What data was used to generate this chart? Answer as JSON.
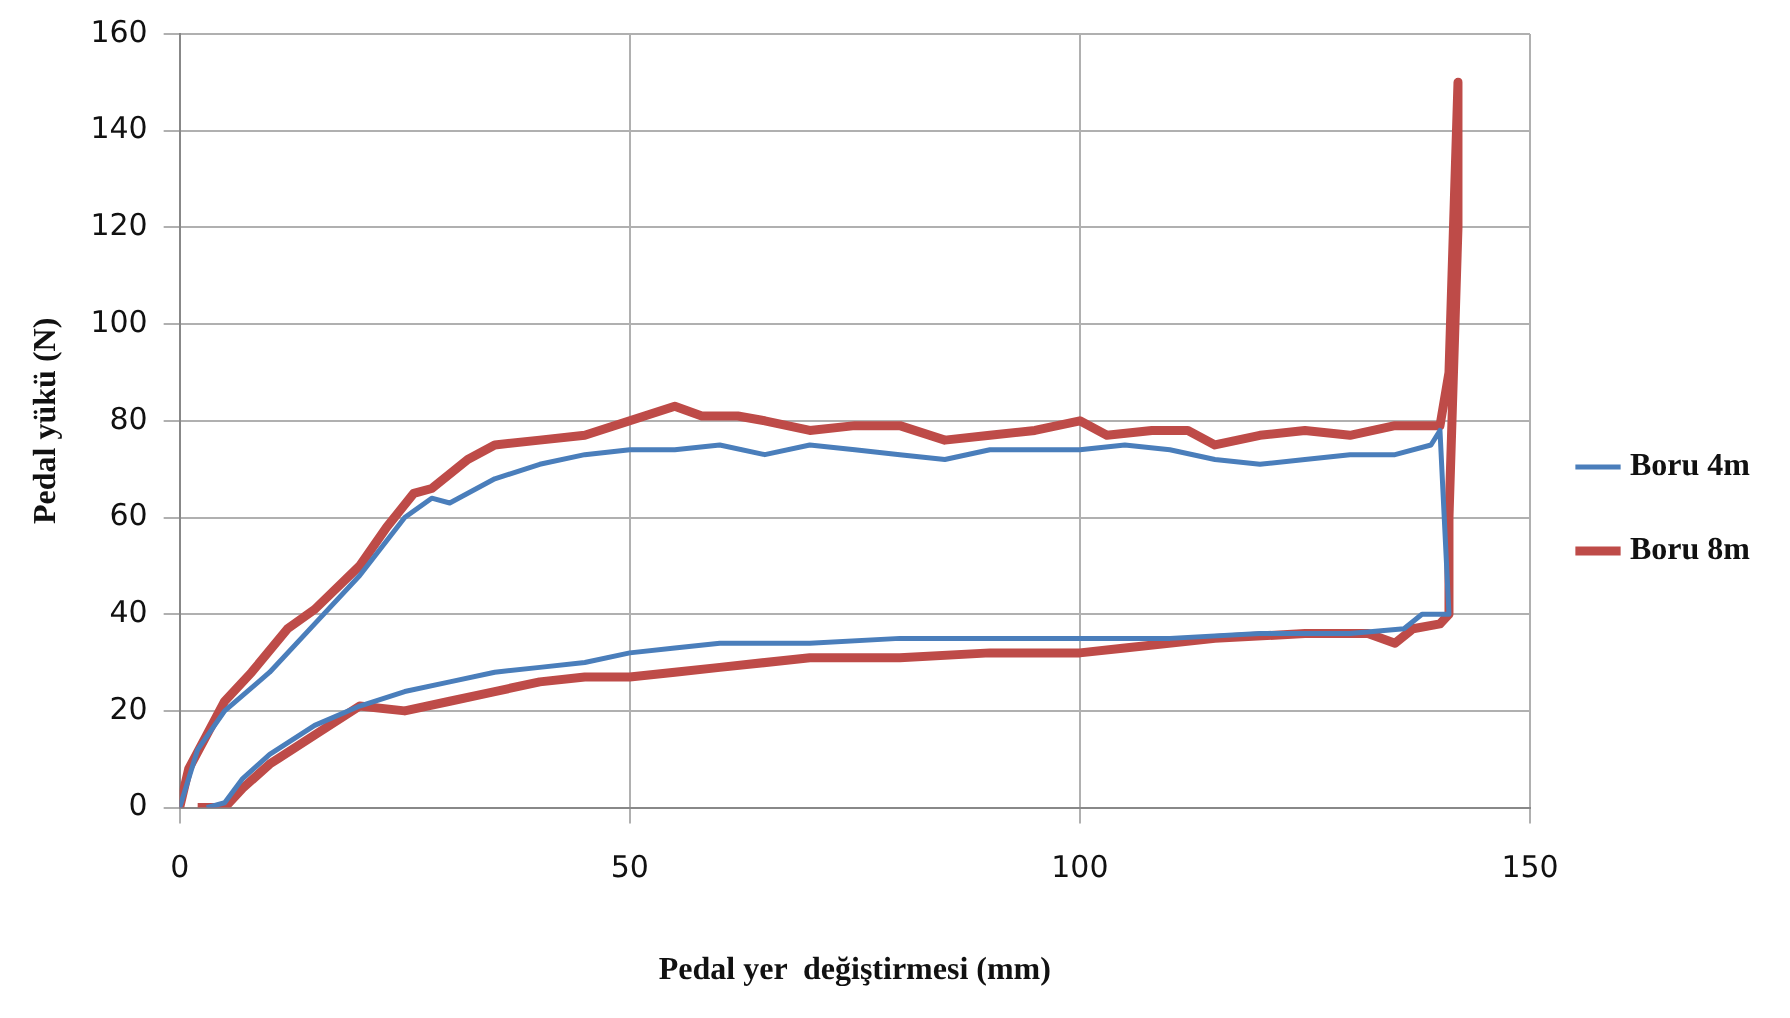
{
  "chart_data": {
    "type": "line",
    "xlabel": "Pedal yer  değiştirmesi (mm)",
    "ylabel": "Pedal yükü (N)",
    "xlim": [
      0,
      150
    ],
    "xticks": [
      0,
      50,
      100,
      150
    ],
    "ylim": [
      0,
      160
    ],
    "yticks": [
      0,
      20,
      40,
      60,
      80,
      100,
      120,
      140,
      160
    ],
    "grid": true,
    "legend": "right",
    "marker": "none",
    "line_style": "solid",
    "series": [
      {
        "name": "Boru 4m",
        "color": "#4a7ebb",
        "x": [
          0,
          2,
          5,
          10,
          15,
          20,
          25,
          28,
          30,
          35,
          40,
          45,
          50,
          55,
          60,
          65,
          70,
          75,
          80,
          85,
          90,
          100,
          105,
          110,
          115,
          120,
          125,
          130,
          135,
          139,
          140,
          141,
          138,
          136,
          130,
          120,
          110,
          100,
          90,
          80,
          70,
          60,
          55,
          50,
          45,
          40,
          35,
          30,
          25,
          20,
          15,
          10,
          7,
          5,
          3
        ],
        "values": [
          0,
          12,
          20,
          28,
          38,
          48,
          60,
          64,
          63,
          68,
          71,
          73,
          74,
          74,
          75,
          73,
          75,
          74,
          73,
          72,
          74,
          74,
          75,
          74,
          72,
          71,
          72,
          73,
          73,
          75,
          78,
          40,
          40,
          37,
          36,
          36,
          35,
          35,
          35,
          35,
          34,
          34,
          33,
          32,
          30,
          29,
          28,
          26,
          24,
          21,
          17,
          11,
          6,
          1,
          0
        ]
      },
      {
        "name": "Boru 8m",
        "color": "#be4b48",
        "x": [
          0,
          1,
          3,
          5,
          8,
          12,
          15,
          20,
          23,
          26,
          28,
          32,
          35,
          40,
          45,
          50,
          55,
          58,
          62,
          65,
          70,
          75,
          80,
          85,
          90,
          95,
          100,
          103,
          108,
          112,
          115,
          120,
          125,
          130,
          135,
          140,
          141,
          142,
          142,
          141,
          141,
          140,
          137,
          135,
          132,
          125,
          115,
          105,
          100,
          90,
          80,
          70,
          60,
          55,
          50,
          45,
          40,
          35,
          30,
          25,
          20,
          15,
          10,
          7,
          5,
          2
        ],
        "values": [
          0,
          8,
          15,
          22,
          28,
          37,
          41,
          50,
          58,
          65,
          66,
          72,
          75,
          76,
          77,
          80,
          83,
          81,
          81,
          80,
          78,
          79,
          79,
          76,
          77,
          78,
          80,
          77,
          78,
          78,
          75,
          77,
          78,
          77,
          79,
          79,
          90,
          150,
          120,
          60,
          40,
          38,
          37,
          34,
          36,
          36,
          35,
          33,
          32,
          32,
          31,
          31,
          29,
          28,
          27,
          27,
          26,
          24,
          22,
          20,
          21,
          15,
          9,
          4,
          0,
          0
        ]
      }
    ]
  }
}
